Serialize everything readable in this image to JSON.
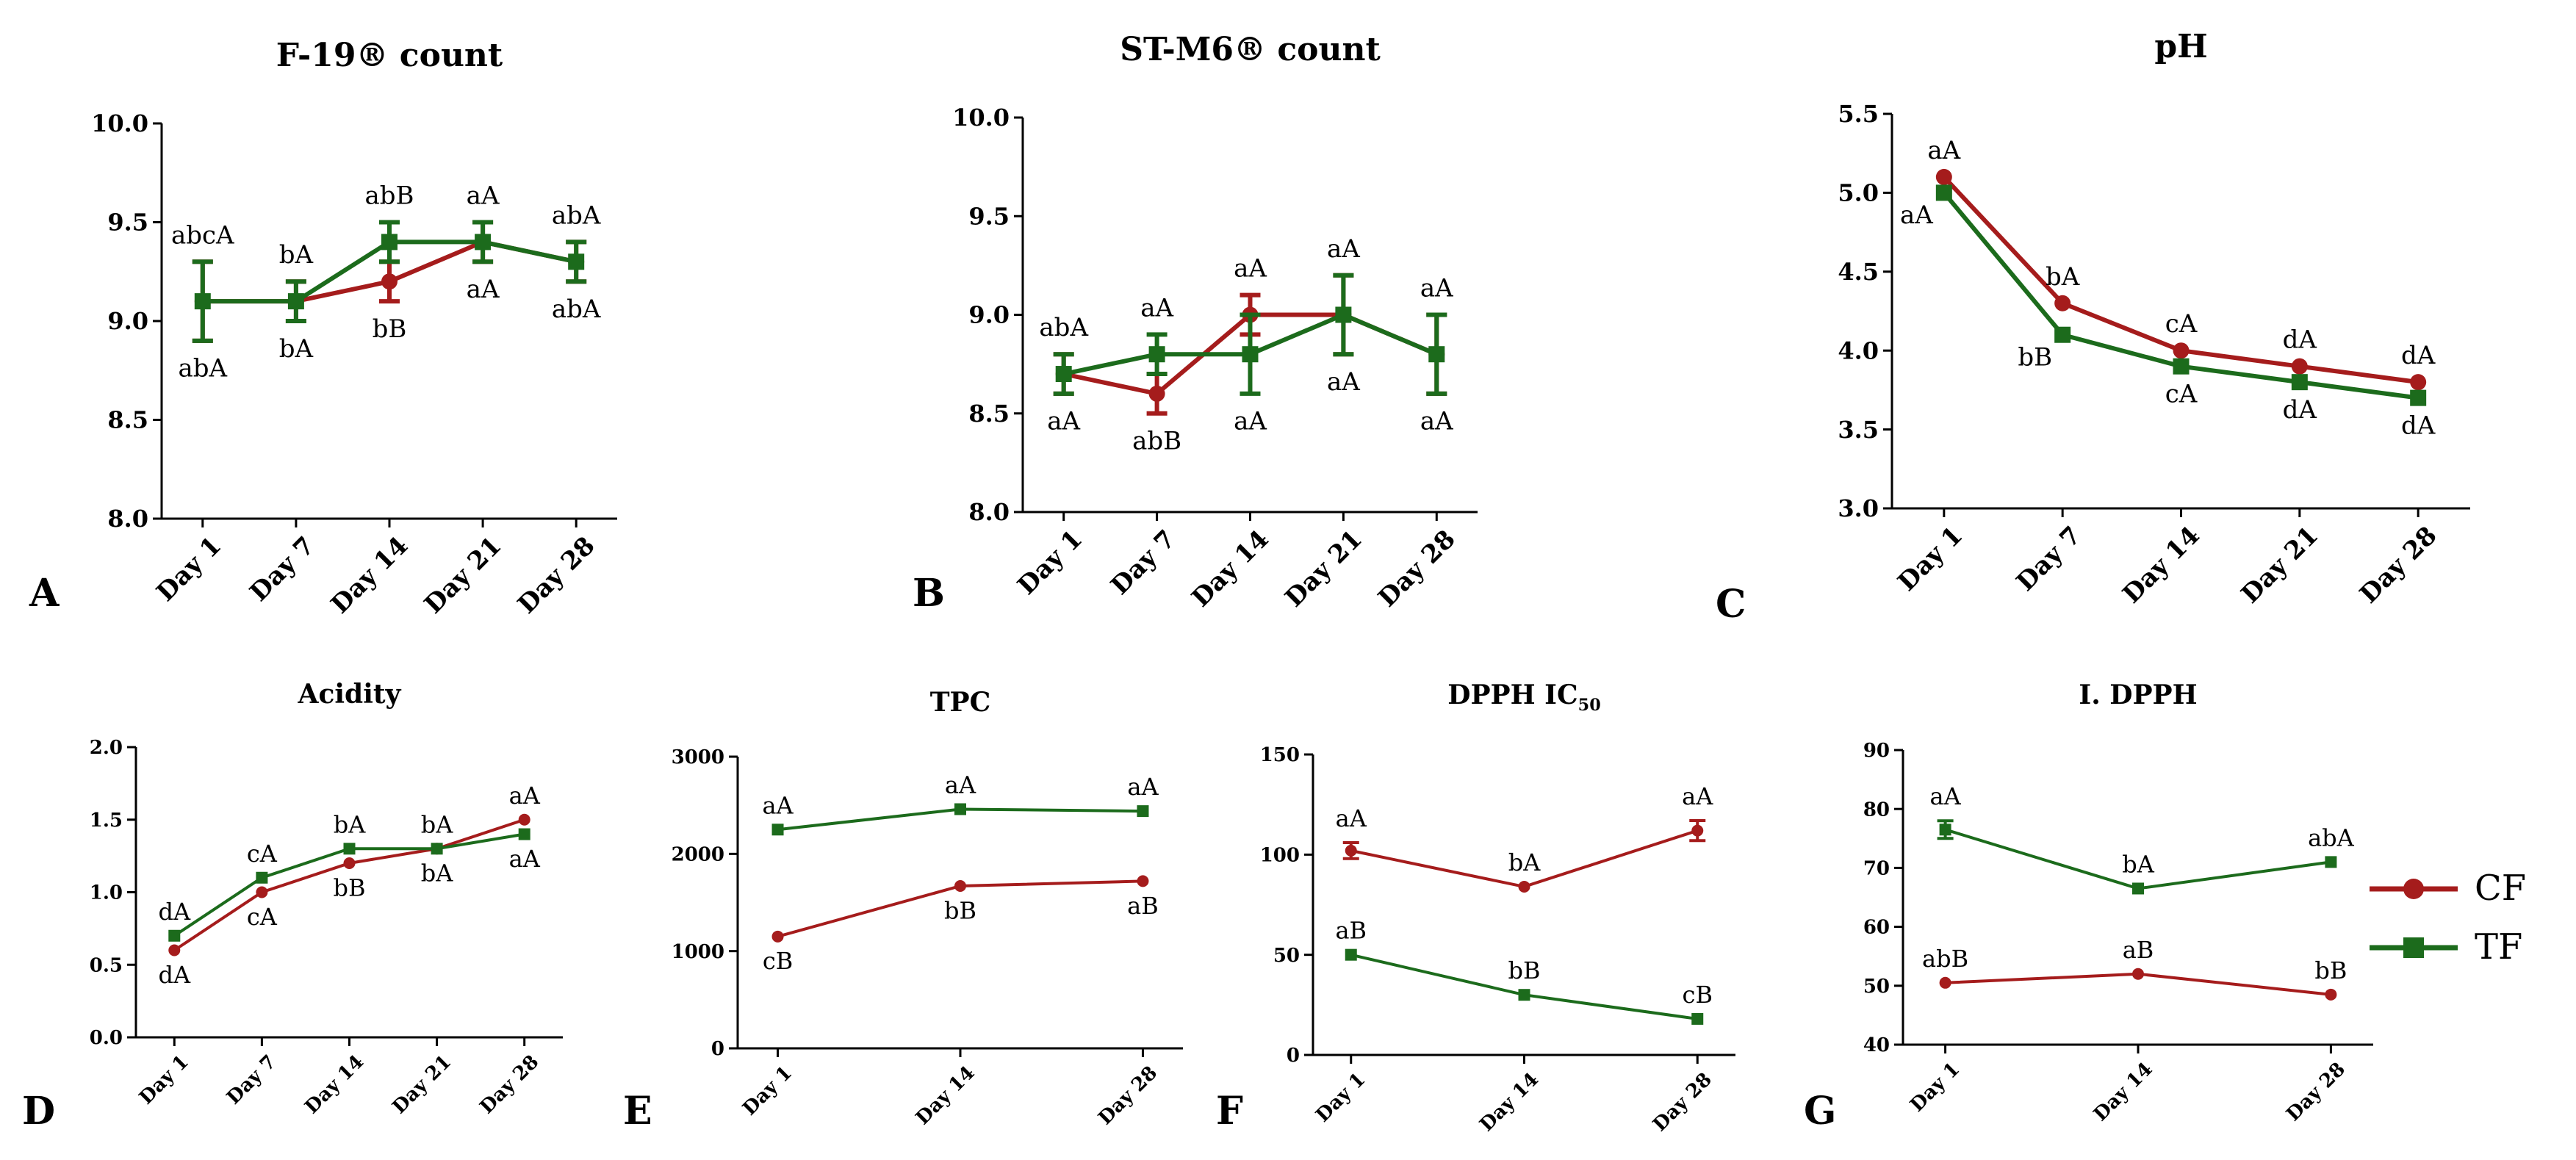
{
  "colors": {
    "CF": "#a51c1c",
    "TF": "#1c6b1c",
    "axis": "#000000"
  },
  "legend": [
    {
      "name": "CF",
      "marker": "circle",
      "color": "#a51c1c"
    },
    {
      "name": "TF",
      "marker": "square",
      "color": "#1c6b1c"
    }
  ],
  "chart_data": [
    {
      "panel": "A",
      "type": "line",
      "title": "F-19® count",
      "categories": [
        "Day 1",
        "Day 7",
        "Day 14",
        "Day 21",
        "Day 28"
      ],
      "ylim": [
        8.0,
        10.0
      ],
      "yticks": [
        "8.0",
        "8.5",
        "9.0",
        "9.5",
        "10.0"
      ],
      "ytickvals": [
        8.0,
        8.5,
        9.0,
        9.5,
        10.0
      ],
      "series": [
        {
          "name": "CF",
          "values": [
            9.1,
            9.1,
            9.2,
            9.4,
            9.3
          ],
          "errors": [
            0.2,
            0.1,
            0.1,
            0.1,
            0.1
          ],
          "labels": [
            "abcA",
            "bA",
            "bB",
            "aA",
            "abA"
          ],
          "label_pos": [
            "above",
            "below",
            "below",
            "above",
            "above"
          ]
        },
        {
          "name": "TF",
          "values": [
            9.1,
            9.1,
            9.4,
            9.4,
            9.3
          ],
          "errors": [
            0.2,
            0.1,
            0.1,
            0.1,
            0.1
          ],
          "labels": [
            "abA",
            "bA",
            "abB",
            "aA",
            "abA"
          ],
          "label_pos": [
            "below",
            "above",
            "above",
            "below",
            "below"
          ]
        }
      ]
    },
    {
      "panel": "B",
      "type": "line",
      "title": "ST-M6® count",
      "categories": [
        "Day 1",
        "Day 7",
        "Day 14",
        "Day 21",
        "Day 28"
      ],
      "ylim": [
        8.0,
        10.0
      ],
      "yticks": [
        "8.0",
        "8.5",
        "9.0",
        "9.5",
        "10.0"
      ],
      "ytickvals": [
        8.0,
        8.5,
        9.0,
        9.5,
        10.0
      ],
      "series": [
        {
          "name": "CF",
          "values": [
            8.7,
            8.6,
            9.0,
            9.0,
            8.8
          ],
          "errors": [
            0.1,
            0.1,
            0.1,
            0.2,
            0.2
          ],
          "labels": [
            "abA",
            "abB",
            "aA",
            "aA",
            "aA"
          ],
          "label_pos": [
            "above",
            "below",
            "above",
            "above",
            "above"
          ]
        },
        {
          "name": "TF",
          "values": [
            8.7,
            8.8,
            8.8,
            9.0,
            8.8
          ],
          "errors": [
            0.1,
            0.1,
            0.2,
            0.2,
            0.2
          ],
          "labels": [
            "aA",
            "aA",
            "aA",
            "aA",
            "aA"
          ],
          "label_pos": [
            "below",
            "above",
            "below",
            "below",
            "below"
          ]
        }
      ]
    },
    {
      "panel": "C",
      "type": "line",
      "title": "pH",
      "categories": [
        "Day 1",
        "Day 7",
        "Day 14",
        "Day 21",
        "Day 28"
      ],
      "ylim": [
        3.0,
        5.5
      ],
      "yticks": [
        "3.0",
        "3.5",
        "4.0",
        "4.5",
        "5.0",
        "5.5"
      ],
      "ytickvals": [
        3.0,
        3.5,
        4.0,
        4.5,
        5.0,
        5.5
      ],
      "series": [
        {
          "name": "CF",
          "values": [
            5.1,
            4.3,
            4.0,
            3.9,
            3.8
          ],
          "errors": [
            0,
            0,
            0,
            0,
            0
          ],
          "labels": [
            "aA",
            "bA",
            "cA",
            "dA",
            "dA"
          ],
          "label_pos": [
            "above",
            "above",
            "above",
            "above",
            "above"
          ]
        },
        {
          "name": "TF",
          "values": [
            5.0,
            4.1,
            3.9,
            3.8,
            3.7
          ],
          "errors": [
            0,
            0,
            0,
            0,
            0
          ],
          "labels": [
            "aA",
            "bB",
            "cA",
            "dA",
            "dA"
          ],
          "label_pos": [
            "belowleft",
            "belowleft",
            "below",
            "below",
            "below"
          ]
        }
      ]
    },
    {
      "panel": "D",
      "type": "line",
      "title": "Acidity",
      "categories": [
        "Day 1",
        "Day 7",
        "Day 14",
        "Day 21",
        "Day 28"
      ],
      "ylim": [
        0.0,
        2.0
      ],
      "yticks": [
        "0.0",
        "0.5",
        "1.0",
        "1.5",
        "2.0"
      ],
      "ytickvals": [
        0.0,
        0.5,
        1.0,
        1.5,
        2.0
      ],
      "series": [
        {
          "name": "CF",
          "values": [
            0.6,
            1.0,
            1.2,
            1.3,
            1.5
          ],
          "errors": [
            0,
            0,
            0,
            0,
            0
          ],
          "labels": [
            "dA",
            "cA",
            "bB",
            "bA",
            "aA"
          ],
          "label_pos": [
            "below",
            "below",
            "below",
            "below",
            "above"
          ]
        },
        {
          "name": "TF",
          "values": [
            0.7,
            1.1,
            1.3,
            1.3,
            1.4
          ],
          "errors": [
            0,
            0,
            0,
            0,
            0
          ],
          "labels": [
            "dA",
            "cA",
            "bA",
            "bA",
            "aA"
          ],
          "label_pos": [
            "above",
            "above",
            "above",
            "above",
            "below"
          ]
        }
      ]
    },
    {
      "panel": "E",
      "type": "line",
      "title": "TPC",
      "categories": [
        "Day 1",
        "Day 14",
        "Day 28"
      ],
      "ylim": [
        0,
        3000
      ],
      "yticks": [
        "0",
        "1000",
        "2000",
        "3000"
      ],
      "ytickvals": [
        0,
        1000,
        2000,
        3000
      ],
      "series": [
        {
          "name": "CF",
          "values": [
            1150,
            1670,
            1720
          ],
          "errors": [
            0,
            0,
            0
          ],
          "labels": [
            "cB",
            "bB",
            "aB"
          ],
          "label_pos": [
            "below",
            "below",
            "below"
          ]
        },
        {
          "name": "TF",
          "values": [
            2250,
            2460,
            2440
          ],
          "errors": [
            0,
            0,
            0
          ],
          "labels": [
            "aA",
            "aA",
            "aA"
          ],
          "label_pos": [
            "above",
            "above",
            "above"
          ]
        }
      ]
    },
    {
      "panel": "F",
      "type": "line",
      "title": "DPPH IC",
      "title_sub": "50",
      "categories": [
        "Day 1",
        "Day 14",
        "Day 28"
      ],
      "ylim": [
        0,
        150
      ],
      "yticks": [
        "0",
        "50",
        "100",
        "150"
      ],
      "ytickvals": [
        0,
        50,
        100,
        150
      ],
      "series": [
        {
          "name": "CF",
          "values": [
            102,
            84,
            112
          ],
          "errors": [
            4,
            0,
            5
          ],
          "labels": [
            "aA",
            "bA",
            "aA"
          ],
          "label_pos": [
            "above",
            "above",
            "above"
          ]
        },
        {
          "name": "TF",
          "values": [
            50,
            30,
            18
          ],
          "errors": [
            0,
            0,
            0
          ],
          "labels": [
            "aB",
            "bB",
            "cB"
          ],
          "label_pos": [
            "above",
            "above",
            "above"
          ]
        }
      ]
    },
    {
      "panel": "G",
      "type": "line",
      "title": "I. DPPH",
      "categories": [
        "Day 1",
        "Day 14",
        "Day 28"
      ],
      "ylim": [
        40,
        90
      ],
      "yticks": [
        "40",
        "50",
        "60",
        "70",
        "80",
        "90"
      ],
      "ytickvals": [
        40,
        50,
        60,
        70,
        80,
        90
      ],
      "series": [
        {
          "name": "CF",
          "values": [
            50.5,
            52,
            48.5
          ],
          "errors": [
            0,
            0,
            0
          ],
          "labels": [
            "abB",
            "aB",
            "bB"
          ],
          "label_pos": [
            "above",
            "above",
            "above"
          ]
        },
        {
          "name": "TF",
          "values": [
            76.5,
            66.5,
            71
          ],
          "errors": [
            1.5,
            0,
            0
          ],
          "labels": [
            "aA",
            "bA",
            "abA"
          ],
          "label_pos": [
            "above",
            "above",
            "above"
          ]
        }
      ]
    }
  ]
}
